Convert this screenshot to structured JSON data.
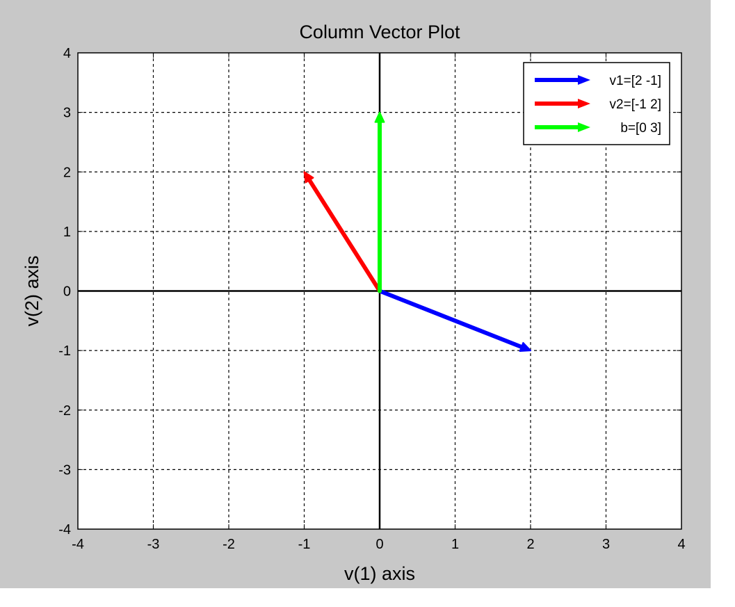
{
  "chart_data": {
    "type": "line",
    "title": "Column Vector Plot",
    "xlabel": "v(1) axis",
    "ylabel": "v(2) axis",
    "xlim": [
      -4,
      4
    ],
    "ylim": [
      -4,
      4
    ],
    "xticks": [
      -4,
      -3,
      -2,
      -1,
      0,
      1,
      2,
      3,
      4
    ],
    "yticks": [
      -4,
      -3,
      -2,
      -1,
      0,
      1,
      2,
      3,
      4
    ],
    "grid": true,
    "grid_style": "dashed",
    "axes_through_origin": true,
    "legend_position": "top-right",
    "series": [
      {
        "name": "v1=[2 -1]",
        "color": "#0000ff",
        "from": [
          0,
          0
        ],
        "to": [
          2,
          -1
        ]
      },
      {
        "name": "v2=[-1 2]",
        "color": "#ff0000",
        "from": [
          0,
          0
        ],
        "to": [
          -1,
          2
        ]
      },
      {
        "name": "b=[0 3]",
        "color": "#00ff00",
        "from": [
          0,
          0
        ],
        "to": [
          0,
          3
        ]
      }
    ]
  }
}
